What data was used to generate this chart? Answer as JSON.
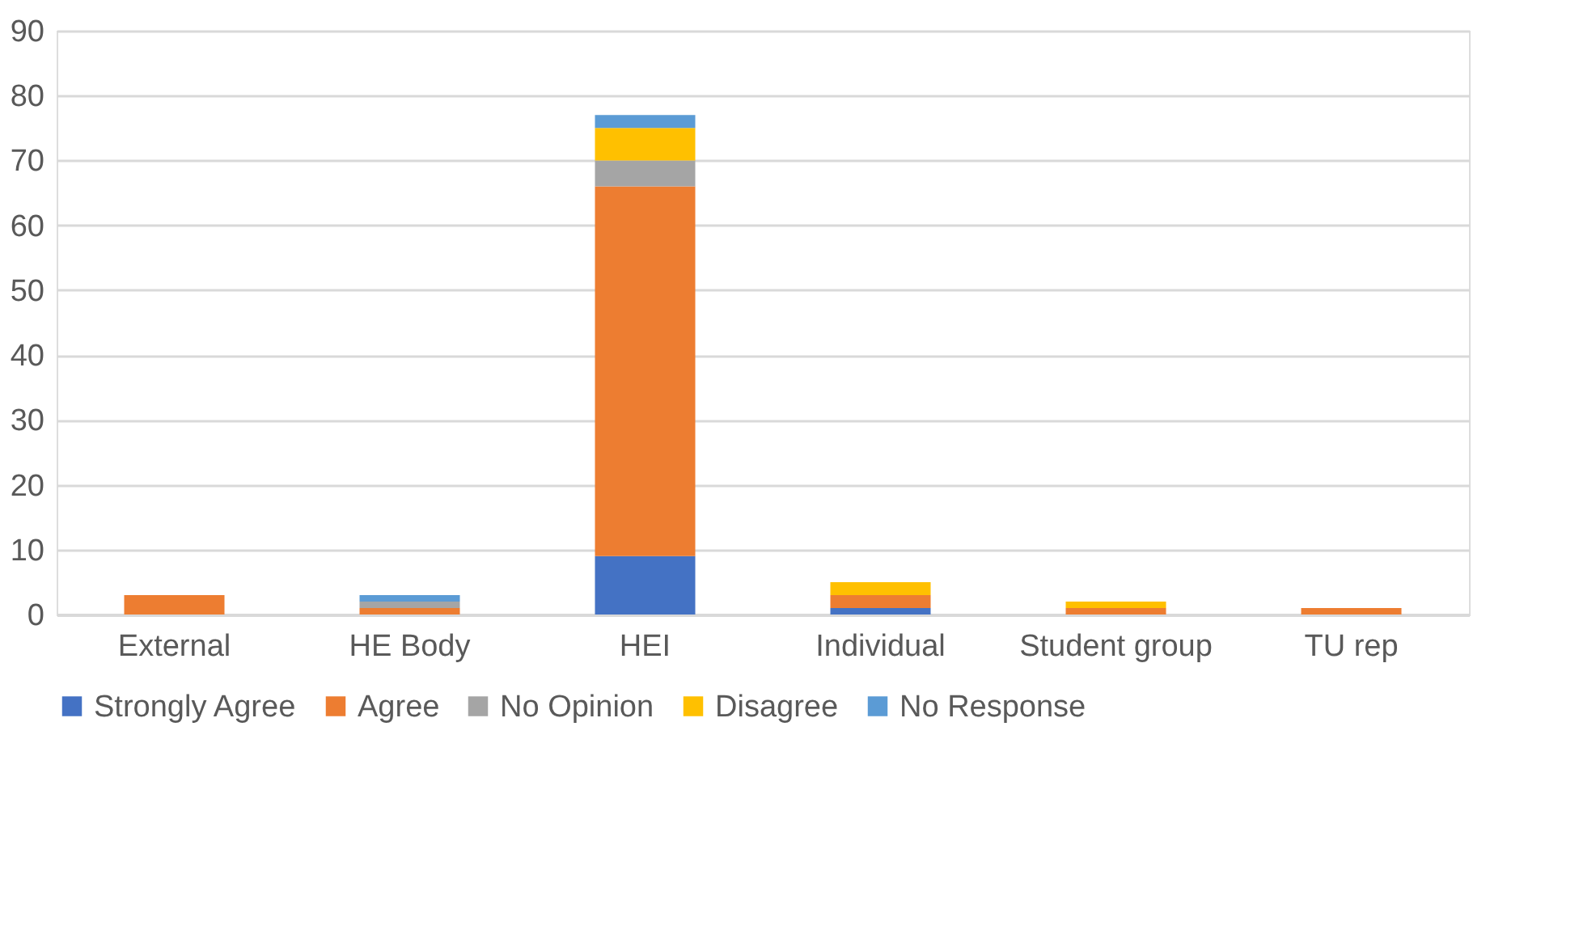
{
  "chart_data": {
    "type": "bar",
    "stacked": true,
    "categories": [
      "External",
      "HE Body",
      "HEI",
      "Individual",
      "Student group",
      "TU rep"
    ],
    "series": [
      {
        "name": "Strongly Agree",
        "color": "#4472c4",
        "values": [
          0,
          0,
          9,
          1,
          0,
          0
        ]
      },
      {
        "name": "Agree",
        "color": "#ed7d31",
        "values": [
          3,
          1,
          57,
          2,
          1,
          1
        ]
      },
      {
        "name": "No Opinion",
        "color": "#a5a5a5",
        "values": [
          0,
          1,
          4,
          0,
          0,
          0
        ]
      },
      {
        "name": "Disagree",
        "color": "#ffc000",
        "values": [
          0,
          0,
          5,
          2,
          1,
          0
        ]
      },
      {
        "name": "No Response",
        "color": "#5b9bd5",
        "values": [
          0,
          1,
          2,
          0,
          0,
          0
        ]
      }
    ],
    "ylim": [
      0,
      90
    ],
    "yticks": [
      0,
      10,
      20,
      30,
      40,
      50,
      60,
      70,
      80,
      90
    ],
    "grid": "y",
    "legend": "bottom"
  }
}
